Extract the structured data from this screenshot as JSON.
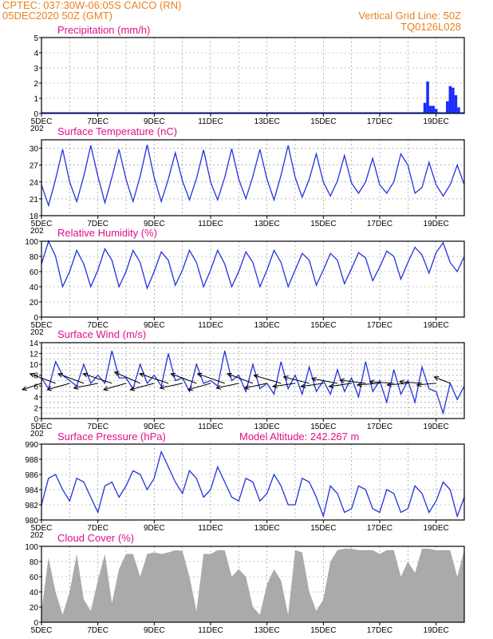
{
  "header": {
    "line1": "CPTEC:   037:30W-06:05S   CAICO (RN)",
    "line2": "05DEC2020 50Z (GMT)",
    "right1": "Vertical Grid Line: 50Z",
    "right2": "TQ0126L028",
    "model_altitude": "Model Altitude: 242.267 m"
  },
  "colors": {
    "header": "#e8821e",
    "titles": "#e0108a",
    "line_series": "#2233dd",
    "bars_precip": "#1a2cff",
    "cloud_fill": "#aaaaaa",
    "arrows": "#000000"
  },
  "x_axis": {
    "start": "05DEC2020",
    "days": 15,
    "tick_labels": [
      "5DEC",
      "7DEC",
      "9DEC",
      "11DEC",
      "13DEC",
      "15DEC",
      "17DEC",
      "19DEC"
    ],
    "tick_day_offsets": [
      0,
      2,
      4,
      6,
      8,
      10,
      12,
      14
    ],
    "under_label": "202"
  },
  "chart_data": [
    {
      "type": "bar",
      "title": "Precipitation (mm/h)",
      "ylim": [
        0,
        5
      ],
      "yticks": [
        0,
        1,
        2,
        3,
        4,
        5
      ],
      "grid": true,
      "x": [
        13.6,
        13.7,
        13.8,
        13.9,
        14.0,
        14.4,
        14.5,
        14.6,
        14.7,
        14.8
      ],
      "values": [
        0.7,
        2.1,
        0.5,
        0.5,
        0.3,
        0.8,
        1.8,
        1.7,
        1.2,
        0.4
      ]
    },
    {
      "type": "line",
      "title": "Surface Temperature (nC)",
      "ylim": [
        18,
        31.5
      ],
      "yticks": [
        18,
        21,
        24,
        27,
        30
      ],
      "grid": true,
      "x": [
        0.0,
        0.25,
        0.5,
        0.75,
        1.0,
        1.25,
        1.5,
        1.75,
        2.0,
        2.25,
        2.5,
        2.75,
        3.0,
        3.25,
        3.5,
        3.75,
        4.0,
        4.25,
        4.5,
        4.75,
        5.0,
        5.25,
        5.5,
        5.75,
        6.0,
        6.25,
        6.5,
        6.75,
        7.0,
        7.25,
        7.5,
        7.75,
        8.0,
        8.25,
        8.5,
        8.75,
        9.0,
        9.25,
        9.5,
        9.75,
        10.0,
        10.25,
        10.5,
        10.75,
        11.0,
        11.25,
        11.5,
        11.75,
        12.0,
        12.25,
        12.5,
        12.75,
        13.0,
        13.25,
        13.5,
        13.75,
        14.0,
        14.25,
        14.5,
        14.75,
        15.0
      ],
      "values": [
        23.5,
        19.8,
        24.5,
        29.8,
        24.0,
        20.5,
        25.0,
        30.5,
        25.0,
        20.3,
        24.8,
        29.8,
        24.5,
        20.5,
        25.0,
        30.6,
        24.8,
        20.5,
        24.5,
        29.2,
        24.2,
        20.8,
        24.6,
        29.7,
        24.0,
        20.8,
        24.8,
        29.9,
        24.5,
        21.0,
        25.0,
        29.8,
        24.5,
        20.8,
        25.2,
        30.5,
        24.8,
        21.3,
        24.5,
        29.0,
        24.0,
        21.5,
        24.2,
        28.7,
        23.8,
        22.0,
        24.0,
        28.2,
        23.5,
        22.0,
        24.0,
        29.0,
        27.0,
        22.0,
        23.0,
        27.5,
        23.5,
        21.5,
        23.5,
        27.0,
        23.5
      ]
    },
    {
      "type": "line",
      "title": "Relative Humidity (%)",
      "ylim": [
        0,
        100
      ],
      "yticks": [
        0,
        20,
        40,
        60,
        80,
        100
      ],
      "grid": true,
      "x": [
        0.0,
        0.25,
        0.5,
        0.75,
        1.0,
        1.25,
        1.5,
        1.75,
        2.0,
        2.25,
        2.5,
        2.75,
        3.0,
        3.25,
        3.5,
        3.75,
        4.0,
        4.25,
        4.5,
        4.75,
        5.0,
        5.25,
        5.5,
        5.75,
        6.0,
        6.25,
        6.5,
        6.75,
        7.0,
        7.25,
        7.5,
        7.75,
        8.0,
        8.25,
        8.5,
        8.75,
        9.0,
        9.25,
        9.5,
        9.75,
        10.0,
        10.25,
        10.5,
        10.75,
        11.0,
        11.25,
        11.5,
        11.75,
        12.0,
        12.25,
        12.5,
        12.75,
        13.0,
        13.25,
        13.5,
        13.75,
        14.0,
        14.25,
        14.5,
        14.75,
        15.0
      ],
      "values": [
        70,
        100,
        80,
        40,
        60,
        88,
        70,
        40,
        62,
        90,
        75,
        40,
        60,
        88,
        72,
        38,
        60,
        86,
        75,
        42,
        62,
        88,
        72,
        40,
        62,
        88,
        70,
        40,
        60,
        86,
        72,
        40,
        62,
        88,
        72,
        40,
        62,
        84,
        75,
        42,
        62,
        84,
        75,
        44,
        64,
        85,
        78,
        48,
        66,
        87,
        80,
        50,
        72,
        92,
        82,
        58,
        85,
        98,
        72,
        60,
        80
      ]
    },
    {
      "type": "line",
      "title": "Surface Wind (m/s)",
      "ylim": [
        0,
        14
      ],
      "yticks": [
        0,
        1,
        2,
        3,
        4,
        5,
        6,
        7,
        8,
        9,
        10,
        11,
        12,
        13,
        14
      ],
      "ytick_labels": [
        0,
        2,
        4,
        6,
        8,
        10,
        12,
        14
      ],
      "grid": true,
      "x": [
        0.0,
        0.25,
        0.5,
        0.75,
        1.0,
        1.25,
        1.5,
        1.75,
        2.0,
        2.25,
        2.5,
        2.75,
        3.0,
        3.25,
        3.5,
        3.75,
        4.0,
        4.25,
        4.5,
        4.75,
        5.0,
        5.25,
        5.5,
        5.75,
        6.0,
        6.25,
        6.5,
        6.75,
        7.0,
        7.25,
        7.5,
        7.75,
        8.0,
        8.25,
        8.5,
        8.75,
        9.0,
        9.25,
        9.5,
        9.75,
        10.0,
        10.25,
        10.5,
        10.75,
        11.0,
        11.25,
        11.5,
        11.75,
        12.0,
        12.25,
        12.5,
        12.75,
        13.0,
        13.25,
        13.5,
        13.75,
        14.0,
        14.25,
        14.5,
        14.75,
        15.0
      ],
      "values": [
        7.5,
        5.5,
        10.5,
        8.0,
        7.0,
        6.0,
        10.0,
        6.5,
        8.0,
        6.5,
        12.5,
        7.5,
        7.5,
        5.5,
        10.0,
        6.5,
        8.0,
        6.0,
        12.0,
        7.0,
        7.5,
        5.0,
        10.0,
        6.5,
        7.0,
        6.0,
        12.5,
        7.0,
        8.0,
        5.0,
        10.0,
        5.5,
        6.5,
        4.5,
        10.5,
        5.5,
        8.0,
        4.5,
        9.5,
        5.0,
        7.0,
        4.5,
        9.0,
        5.0,
        7.5,
        4.0,
        10.5,
        5.0,
        7.0,
        3.0,
        9.0,
        4.5,
        7.0,
        3.0,
        9.5,
        5.5,
        5.0,
        1.0,
        6.5,
        3.5,
        6.0
      ],
      "arrows": {
        "x": [
          0.0,
          0.5,
          1.0,
          1.5,
          2.0,
          2.5,
          3.0,
          3.5,
          4.0,
          4.5,
          5.0,
          5.5,
          6.0,
          6.5,
          7.0,
          7.5,
          8.0,
          8.5,
          9.0,
          9.5,
          10.0,
          10.5,
          11.0,
          11.5,
          12.0,
          12.5,
          13.0,
          13.5,
          14.0,
          14.5
        ],
        "u": [
          -6.0,
          -8.0,
          -7.0,
          -8.0,
          -7.5,
          -9.0,
          -7.0,
          -8.0,
          -7.5,
          -9.0,
          -7.0,
          -8.0,
          -7.0,
          -8.5,
          -7.0,
          -8.0,
          -7.0,
          -8.5,
          -7.0,
          -8.0,
          -7.0,
          -8.0,
          -7.0,
          -8.0,
          -7.0,
          -7.5,
          -6.5,
          -7.0,
          -6.0,
          -5.0
        ],
        "v": [
          -2.0,
          3.0,
          -2.0,
          3.0,
          -1.5,
          3.0,
          -2.0,
          3.5,
          -2.0,
          3.0,
          -1.5,
          3.0,
          -2.0,
          3.0,
          -1.5,
          3.0,
          -1.5,
          2.5,
          -1.0,
          2.0,
          -1.0,
          1.5,
          -1.0,
          1.0,
          -0.5,
          0.5,
          -0.5,
          0.5,
          -0.5,
          2.0
        ]
      }
    },
    {
      "type": "line",
      "title": "Surface Pressure (hPa)",
      "ylim": [
        980,
        990
      ],
      "yticks": [
        980,
        982,
        984,
        986,
        988,
        990
      ],
      "grid": true,
      "x": [
        0.0,
        0.25,
        0.5,
        0.75,
        1.0,
        1.25,
        1.5,
        1.75,
        2.0,
        2.25,
        2.5,
        2.75,
        3.0,
        3.25,
        3.5,
        3.75,
        4.0,
        4.25,
        4.5,
        4.75,
        5.0,
        5.25,
        5.5,
        5.75,
        6.0,
        6.25,
        6.5,
        6.75,
        7.0,
        7.25,
        7.5,
        7.75,
        8.0,
        8.25,
        8.5,
        8.75,
        9.0,
        9.25,
        9.5,
        9.75,
        10.0,
        10.25,
        10.5,
        10.75,
        11.0,
        11.25,
        11.5,
        11.75,
        12.0,
        12.25,
        12.5,
        12.75,
        13.0,
        13.25,
        13.5,
        13.75,
        14.0,
        14.25,
        14.5,
        14.75,
        15.0
      ],
      "values": [
        982.0,
        985.5,
        986.0,
        984.0,
        982.5,
        985.5,
        985.0,
        983.0,
        981.0,
        984.5,
        985.0,
        983.0,
        984.5,
        986.5,
        986.0,
        984.0,
        985.5,
        989.0,
        987.0,
        985.0,
        983.5,
        986.5,
        985.5,
        983.0,
        984.0,
        987.0,
        985.0,
        983.0,
        982.5,
        985.5,
        985.0,
        982.5,
        983.5,
        986.0,
        984.5,
        982.0,
        982.0,
        985.5,
        985.0,
        983.0,
        980.5,
        984.5,
        983.5,
        981.0,
        981.5,
        984.5,
        984.0,
        981.5,
        981.0,
        984.0,
        983.5,
        981.0,
        981.5,
        984.5,
        983.5,
        981.0,
        982.5,
        985.0,
        984.0,
        980.5,
        983.0
      ]
    },
    {
      "type": "area",
      "title": "Cloud Cover (%)",
      "ylim": [
        0,
        100
      ],
      "yticks": [
        0,
        20,
        40,
        60,
        80,
        100
      ],
      "grid": true,
      "x": [
        0.0,
        0.25,
        0.5,
        0.75,
        1.0,
        1.25,
        1.5,
        1.75,
        2.0,
        2.25,
        2.5,
        2.75,
        3.0,
        3.25,
        3.5,
        3.75,
        4.0,
        4.25,
        4.5,
        4.75,
        5.0,
        5.25,
        5.5,
        5.75,
        6.0,
        6.25,
        6.5,
        6.75,
        7.0,
        7.25,
        7.5,
        7.75,
        8.0,
        8.25,
        8.5,
        8.75,
        9.0,
        9.25,
        9.5,
        9.75,
        10.0,
        10.25,
        10.5,
        10.75,
        11.0,
        11.25,
        11.5,
        11.75,
        12.0,
        12.25,
        12.5,
        12.75,
        13.0,
        13.25,
        13.5,
        13.75,
        14.0,
        14.25,
        14.5,
        14.75,
        15.0
      ],
      "values": [
        15,
        85,
        40,
        10,
        40,
        90,
        30,
        15,
        55,
        90,
        25,
        70,
        90,
        90,
        60,
        90,
        92,
        90,
        92,
        95,
        94,
        60,
        15,
        90,
        90,
        95,
        95,
        60,
        70,
        60,
        20,
        10,
        50,
        70,
        55,
        10,
        95,
        92,
        40,
        15,
        30,
        80,
        95,
        97,
        97,
        95,
        95,
        95,
        90,
        95,
        95,
        60,
        80,
        65,
        97,
        97,
        95,
        95,
        95,
        60,
        95
      ]
    }
  ]
}
